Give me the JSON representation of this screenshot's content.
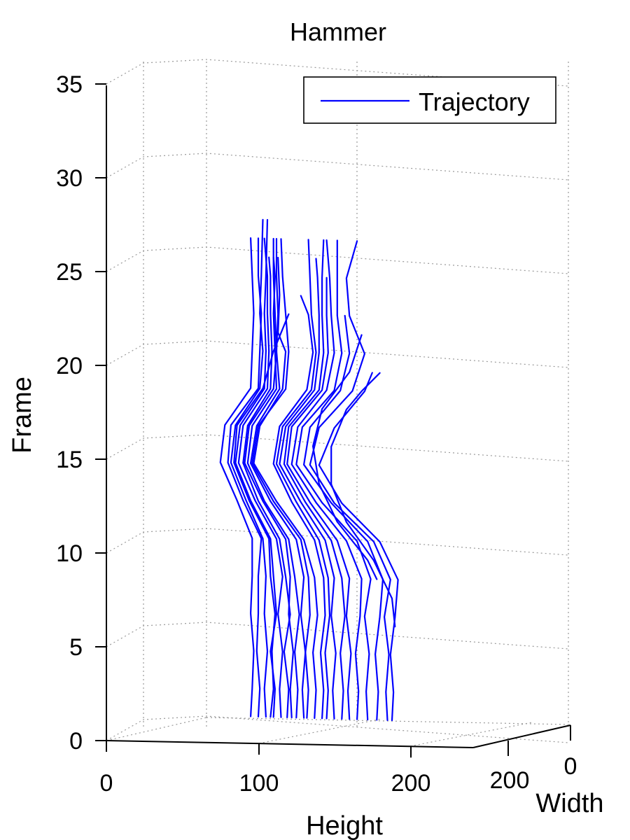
{
  "chart_data": {
    "type": "line",
    "projection": "3d",
    "title": "Hammer",
    "xlabel": "Height",
    "ylabel": "Width",
    "zlabel": "Frame",
    "xlim": [
      0,
      300
    ],
    "ylim": [
      0,
      250
    ],
    "zlim": [
      0,
      35
    ],
    "x_ticks": [
      0,
      100,
      200
    ],
    "y_ticks": [
      0,
      200
    ],
    "z_ticks": [
      0,
      5,
      10,
      15,
      20,
      25,
      30,
      35
    ],
    "grid": true,
    "legend": {
      "entries": [
        "Trajectory"
      ],
      "placement": "top-right"
    },
    "series_color": "#0000ff",
    "series": [
      {
        "z": [
          1.5,
          3,
          5,
          7,
          9,
          11,
          13,
          15,
          17,
          19,
          21,
          23,
          25,
          27
        ],
        "x": [
          100,
          101,
          99,
          100,
          100,
          102,
          90,
          80,
          82,
          100,
          101,
          102,
          100,
          100
        ],
        "y": [
          0,
          0,
          0,
          0,
          0,
          0,
          0,
          0,
          0,
          0,
          0,
          0,
          0,
          0
        ]
      },
      {
        "z": [
          1.5,
          3,
          5,
          7,
          9,
          11,
          13,
          15,
          17,
          19,
          21,
          23,
          25,
          28
        ],
        "x": [
          105,
          104,
          106,
          104,
          105,
          103,
          92,
          82,
          85,
          101,
          103,
          101,
          102,
          103
        ],
        "y": [
          0,
          0,
          0,
          0,
          0,
          0,
          0,
          0,
          0,
          0,
          0,
          0,
          0,
          0
        ]
      },
      {
        "z": [
          1.5,
          3,
          5,
          7,
          9,
          11,
          13,
          15,
          17,
          19,
          21,
          23,
          25,
          28
        ],
        "x": [
          110,
          111,
          108,
          112,
          110,
          108,
          95,
          85,
          88,
          104,
          105,
          104,
          105,
          106
        ],
        "y": [
          0,
          0,
          0,
          0,
          0,
          0,
          0,
          0,
          0,
          0,
          0,
          0,
          0,
          0
        ]
      },
      {
        "z": [
          1.5,
          3,
          5,
          7,
          9,
          11,
          13,
          15,
          17,
          19,
          21,
          23,
          25,
          27
        ],
        "x": [
          115,
          114,
          116,
          113,
          116,
          112,
          98,
          87,
          90,
          106,
          107,
          106,
          106,
          104
        ],
        "y": [
          0,
          0,
          0,
          0,
          0,
          0,
          0,
          0,
          0,
          0,
          0,
          0,
          0,
          0
        ]
      },
      {
        "z": [
          1.5,
          3,
          5,
          7,
          9,
          11,
          13,
          15,
          17,
          19,
          21,
          23,
          25,
          26
        ],
        "x": [
          119,
          120,
          117,
          121,
          118,
          114,
          100,
          90,
          93,
          108,
          109,
          108,
          108,
          107
        ],
        "y": [
          0,
          0,
          0,
          0,
          0,
          0,
          0,
          0,
          0,
          0,
          0,
          0,
          0,
          0
        ]
      },
      {
        "z": [
          1.5,
          3,
          5,
          7,
          9,
          11,
          13,
          15,
          17,
          19,
          21,
          23,
          25,
          27
        ],
        "x": [
          95,
          96,
          97,
          95,
          96,
          96,
          86,
          75,
          78,
          95,
          96,
          97,
          96,
          95
        ],
        "y": [
          0,
          0,
          0,
          0,
          0,
          0,
          0,
          0,
          0,
          0,
          0,
          0,
          0,
          0
        ]
      },
      {
        "z": [
          1.5,
          3,
          5,
          7,
          9,
          11,
          13,
          15,
          17,
          19,
          21,
          23,
          25,
          26
        ],
        "x": [
          125,
          126,
          124,
          127,
          124,
          120,
          104,
          93,
          96,
          112,
          111,
          110,
          111,
          110
        ],
        "y": [
          0,
          0,
          0,
          0,
          0,
          0,
          0,
          0,
          0,
          0,
          0,
          0,
          0,
          0
        ]
      },
      {
        "z": [
          1.5,
          3,
          5,
          7,
          9,
          11,
          13,
          15,
          17,
          19,
          21,
          23,
          25,
          27
        ],
        "x": [
          130,
          129,
          131,
          128,
          130,
          125,
          108,
          95,
          99,
          114,
          112,
          113,
          112,
          112
        ],
        "y": [
          0,
          0,
          0,
          0,
          0,
          0,
          0,
          0,
          0,
          0,
          0,
          0,
          0,
          0
        ]
      },
      {
        "z": [
          1.5,
          3,
          5,
          7,
          9,
          11,
          13,
          15,
          17,
          19,
          21,
          22,
          24,
          26
        ],
        "x": [
          137,
          138,
          136,
          139,
          137,
          130,
          112,
          97,
          101,
          116,
          118,
          113,
          114,
          113
        ],
        "y": [
          0,
          0,
          0,
          0,
          0,
          0,
          0,
          0,
          0,
          0,
          0,
          0,
          0,
          0
        ]
      },
      {
        "z": [
          1.5,
          3,
          5,
          7,
          9,
          11,
          13,
          15,
          17,
          19,
          21,
          23
        ],
        "x": [
          108,
          110,
          109,
          111,
          108,
          107,
          94,
          84,
          86,
          103,
          110,
          120
        ],
        "y": [
          0,
          0,
          0,
          0,
          0,
          0,
          0,
          0,
          0,
          0,
          0,
          0
        ]
      },
      {
        "z": [
          1.5,
          3,
          5,
          7,
          9,
          11,
          13,
          15,
          17,
          19,
          21,
          23,
          25,
          27
        ],
        "x": [
          145,
          146,
          144,
          147,
          146,
          140,
          125,
          112,
          116,
          135,
          138,
          135,
          134,
          133
        ],
        "y": [
          0,
          0,
          0,
          0,
          0,
          0,
          0,
          0,
          0,
          0,
          0,
          0,
          0,
          0
        ]
      },
      {
        "z": [
          1.5,
          3,
          5,
          7,
          9,
          11,
          13,
          15,
          17,
          19,
          21,
          23,
          25,
          26
        ],
        "x": [
          150,
          149,
          151,
          148,
          150,
          144,
          128,
          114,
          118,
          137,
          140,
          140,
          139,
          138
        ],
        "y": [
          0,
          0,
          0,
          0,
          0,
          0,
          0,
          0,
          0,
          0,
          0,
          0,
          0,
          0
        ]
      },
      {
        "z": [
          1.5,
          3,
          5,
          7,
          9,
          11,
          13,
          15,
          17,
          19,
          21,
          23,
          25,
          27
        ],
        "x": [
          155,
          156,
          154,
          157,
          155,
          148,
          131,
          117,
          120,
          140,
          143,
          142,
          142,
          143
        ],
        "y": [
          0,
          0,
          0,
          0,
          0,
          0,
          0,
          0,
          0,
          0,
          0,
          0,
          0,
          0
        ]
      },
      {
        "z": [
          1.5,
          3,
          5,
          7,
          9,
          11,
          13,
          15,
          17,
          19,
          21,
          23,
          25
        ],
        "x": [
          160,
          159,
          161,
          158,
          160,
          152,
          134,
          119,
          122,
          142,
          146,
          145,
          145
        ],
        "y": [
          0,
          0,
          0,
          0,
          0,
          0,
          0,
          0,
          0,
          0,
          0,
          0,
          0
        ]
      },
      {
        "z": [
          1.5,
          3,
          5,
          7,
          9,
          11,
          13,
          15,
          17,
          19,
          21,
          23,
          24
        ],
        "x": [
          142,
          143,
          141,
          144,
          143,
          137,
          122,
          110,
          114,
          132,
          136,
          133,
          128
        ],
        "y": [
          0,
          0,
          0,
          0,
          0,
          0,
          0,
          0,
          0,
          0,
          0,
          0,
          0
        ]
      },
      {
        "z": [
          1.5,
          3,
          5,
          7,
          9,
          11,
          13,
          15,
          17,
          19,
          21,
          23,
          25,
          27
        ],
        "x": [
          165,
          166,
          164,
          167,
          168,
          158,
          138,
          122,
          126,
          145,
          150,
          148,
          147,
          145
        ],
        "y": [
          0,
          0,
          0,
          0,
          0,
          0,
          0,
          0,
          0,
          0,
          0,
          0,
          0,
          0
        ]
      },
      {
        "z": [
          1.5,
          3,
          5,
          7,
          9,
          11,
          13,
          15,
          17,
          19,
          21,
          23,
          25,
          27
        ],
        "x": [
          122,
          121,
          123,
          120,
          121,
          118,
          103,
          91,
          94,
          110,
          112,
          111,
          110,
          110
        ],
        "y": [
          0,
          0,
          0,
          0,
          0,
          0,
          0,
          0,
          0,
          0,
          0,
          0,
          0,
          0
        ]
      },
      {
        "z": [
          1.5,
          3,
          5,
          7,
          9,
          11,
          13,
          15,
          17,
          19,
          21,
          23,
          25,
          27
        ],
        "x": [
          172,
          171,
          173,
          170,
          174,
          165,
          142,
          125,
          129,
          150,
          155,
          152,
          152,
          152
        ],
        "y": [
          0,
          0,
          0,
          0,
          0,
          0,
          0,
          0,
          0,
          0,
          0,
          0,
          0,
          0
        ]
      },
      {
        "z": [
          1.5,
          3,
          5,
          7,
          9,
          11,
          13,
          15,
          17,
          19,
          21,
          23
        ],
        "x": [
          178,
          179,
          177,
          180,
          182,
          172,
          148,
          130,
          134,
          154,
          160,
          157
        ],
        "y": [
          0,
          0,
          0,
          0,
          0,
          0,
          0,
          0,
          0,
          0,
          0,
          0
        ]
      },
      {
        "z": [
          1.5,
          3,
          5,
          7,
          9,
          11,
          13,
          15,
          17,
          19,
          21,
          23,
          25,
          27
        ],
        "x": [
          185,
          184,
          186,
          183,
          187,
          176,
          150,
          134,
          140,
          162,
          170,
          160,
          158,
          165
        ],
        "y": [
          0,
          0,
          0,
          0,
          0,
          0,
          0,
          0,
          0,
          0,
          0,
          0,
          0,
          0
        ]
      },
      {
        "z": [
          1.5,
          3,
          5,
          7,
          9,
          11,
          13,
          15,
          17,
          19,
          20
        ],
        "x": [
          188,
          189,
          187,
          190,
          192,
          180,
          155,
          140,
          150,
          170,
          175
        ],
        "y": [
          0,
          0,
          0,
          0,
          0,
          0,
          0,
          0,
          0,
          0,
          0
        ]
      },
      {
        "z": [
          6.5,
          8,
          10,
          12,
          14,
          16,
          18,
          19,
          20
        ],
        "x": [
          190,
          188,
          176,
          158,
          148,
          148,
          158,
          168,
          180
        ],
        "y": [
          0,
          0,
          0,
          0,
          0,
          0,
          0,
          0,
          0
        ]
      },
      {
        "z": [
          9,
          10,
          12,
          14,
          16,
          18,
          20,
          22
        ],
        "x": [
          178,
          172,
          152,
          140,
          136,
          142,
          160,
          168
        ],
        "y": [
          0,
          0,
          0,
          0,
          0,
          0,
          0,
          0
        ]
      },
      {
        "z": [
          1.5,
          3,
          5,
          7,
          9,
          11,
          13,
          15,
          17,
          19,
          21,
          23,
          25,
          27
        ],
        "x": [
          132,
          133,
          131,
          134,
          133,
          128,
          110,
          96,
          100,
          118,
          120,
          118,
          116,
          115
        ],
        "y": [
          0,
          0,
          0,
          0,
          0,
          0,
          0,
          0,
          0,
          0,
          0,
          0,
          0,
          0
        ]
      }
    ]
  }
}
